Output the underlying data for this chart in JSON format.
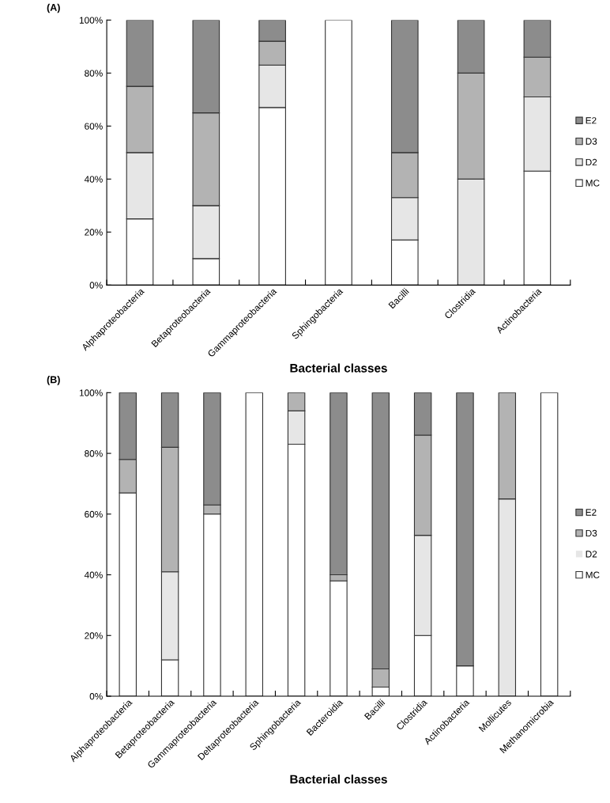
{
  "chart_data": [
    {
      "type": "bar",
      "title": "(A)",
      "xlabel": "Bacterial classes",
      "stacked": true,
      "legend": "right",
      "grid": false,
      "categories": [
        "Alphaproteobacteria",
        "Betaproteobacteria",
        "Gammaproteobacteria",
        "Sphingobacteria",
        "Bacilli",
        "Clostridia",
        "Actinobacteria"
      ],
      "series": [
        {
          "name": "MC",
          "color": "#ffffff",
          "values": [
            25,
            10,
            67,
            100,
            17,
            0,
            43
          ]
        },
        {
          "name": "D2",
          "color": "#e6e6e6",
          "values": [
            25,
            20,
            16,
            0,
            16,
            40,
            28
          ]
        },
        {
          "name": "D3",
          "color": "#b3b3b3",
          "values": [
            25,
            35,
            9,
            0,
            17,
            40,
            15
          ]
        },
        {
          "name": "E2",
          "color": "#8c8c8c",
          "values": [
            25,
            35,
            8,
            0,
            50,
            20,
            14
          ]
        }
      ],
      "ylim": [
        0,
        100
      ],
      "yticks": [
        {
          "value": 0,
          "label": "0%"
        },
        {
          "value": 20,
          "label": "20%"
        },
        {
          "value": 40,
          "label": "40%"
        },
        {
          "value": 60,
          "label": "60%"
        },
        {
          "value": 80,
          "label": "80%"
        },
        {
          "value": 100,
          "label": "100%"
        }
      ]
    },
    {
      "type": "bar",
      "title": "(B)",
      "xlabel": "Bacterial classes",
      "stacked": true,
      "legend": "right",
      "grid": false,
      "categories": [
        "Alphaproteobacteria",
        "Betaproteobacteria",
        "Gammaproteobacteria",
        "Deltaproteobacteria",
        "Sphingobacteria",
        "Bacteroidia",
        "Bacilli",
        "Clostridia",
        "Actinobacteria",
        "Mollicutes",
        "Methanomicrobia"
      ],
      "series": [
        {
          "name": "MC",
          "color": "#ffffff",
          "values": [
            67,
            12,
            60,
            100,
            83,
            38,
            3,
            20,
            10,
            0,
            100
          ]
        },
        {
          "name": "D2",
          "color": "#e6e6e6",
          "values": [
            0,
            29,
            0,
            0,
            11,
            0,
            0,
            33,
            0,
            65,
            0
          ]
        },
        {
          "name": "D3",
          "color": "#b3b3b3",
          "values": [
            11,
            41,
            3,
            0,
            6,
            2,
            6,
            33,
            0,
            35,
            0
          ]
        },
        {
          "name": "E2",
          "color": "#8c8c8c",
          "values": [
            22,
            18,
            37,
            0,
            0,
            60,
            91,
            14,
            90,
            0,
            0
          ]
        }
      ],
      "ylim": [
        0,
        100
      ],
      "yticks": [
        {
          "value": 0,
          "label": "0%"
        },
        {
          "value": 20,
          "label": "20%"
        },
        {
          "value": 40,
          "label": "40%"
        },
        {
          "value": 60,
          "label": "60%"
        },
        {
          "value": 80,
          "label": "80%"
        },
        {
          "value": 100,
          "label": "100%"
        }
      ]
    }
  ]
}
